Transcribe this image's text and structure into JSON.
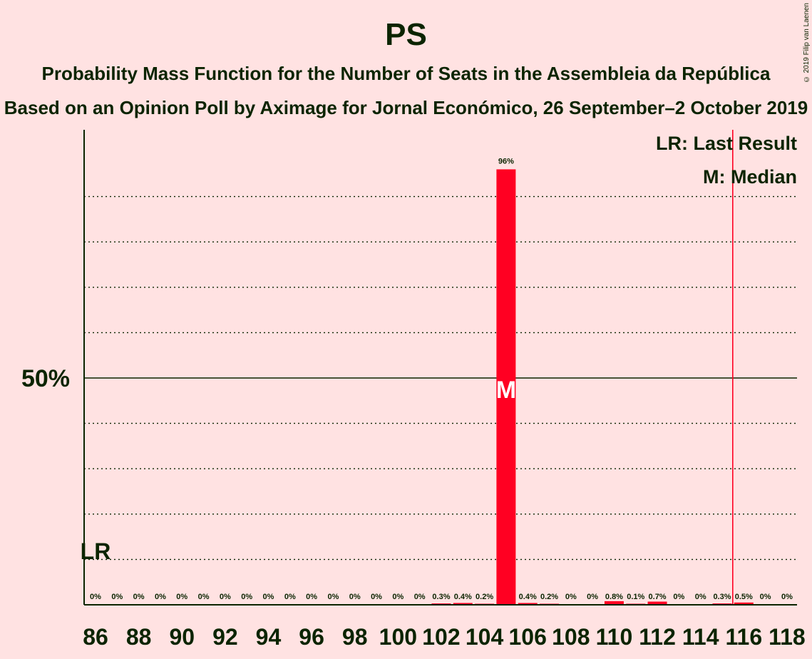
{
  "chart_data": {
    "type": "bar",
    "title": "PS",
    "subtitle": "Probability Mass Function for the Number of Seats in the Assembleia da República",
    "subtitle2": "Based on an Opinion Poll by Aximage for Jornal Económico, 26 September–2 October 2019",
    "copyright": "© 2019 Filip van Laenen",
    "legend": {
      "last_result": "LR: Last Result",
      "median": "M: Median"
    },
    "ytick_label": "50%",
    "ylim": [
      0,
      100
    ],
    "grid": true,
    "categories": [
      86,
      87,
      88,
      89,
      90,
      91,
      92,
      93,
      94,
      95,
      96,
      97,
      98,
      99,
      100,
      101,
      102,
      103,
      104,
      105,
      106,
      107,
      108,
      109,
      110,
      111,
      112,
      113,
      114,
      115,
      116,
      117,
      118
    ],
    "xtick_labels": [
      "86",
      "88",
      "90",
      "92",
      "94",
      "96",
      "98",
      "100",
      "102",
      "104",
      "106",
      "108",
      "110",
      "112",
      "114",
      "116",
      "118"
    ],
    "values": [
      0,
      0,
      0,
      0,
      0,
      0,
      0,
      0,
      0,
      0,
      0,
      0,
      0,
      0,
      0,
      0,
      0.3,
      0.4,
      0.2,
      96,
      0.4,
      0.2,
      0,
      0,
      0.8,
      0.1,
      0.7,
      0,
      0,
      0.3,
      0.5,
      0,
      0
    ],
    "value_labels": [
      "0%",
      "0%",
      "0%",
      "0%",
      "0%",
      "0%",
      "0%",
      "0%",
      "0%",
      "0%",
      "0%",
      "0%",
      "0%",
      "0%",
      "0%",
      "0%",
      "0.3%",
      "0.4%",
      "0.2%",
      "96%",
      "0.4%",
      "0.2%",
      "0%",
      "0%",
      "0.8%",
      "0.1%",
      "0.7%",
      "0%",
      "0%",
      "0.3%",
      "0.5%",
      "0%",
      "0%"
    ],
    "last_result": {
      "seat": 86,
      "label": "LR"
    },
    "median": {
      "seat": 105,
      "label": "M"
    },
    "majority_line": {
      "seat": 116
    },
    "colors": {
      "bar": "#FF0022",
      "axis": "#0B2400",
      "background": "#FFE2E2",
      "majority": "#FF0022"
    }
  }
}
